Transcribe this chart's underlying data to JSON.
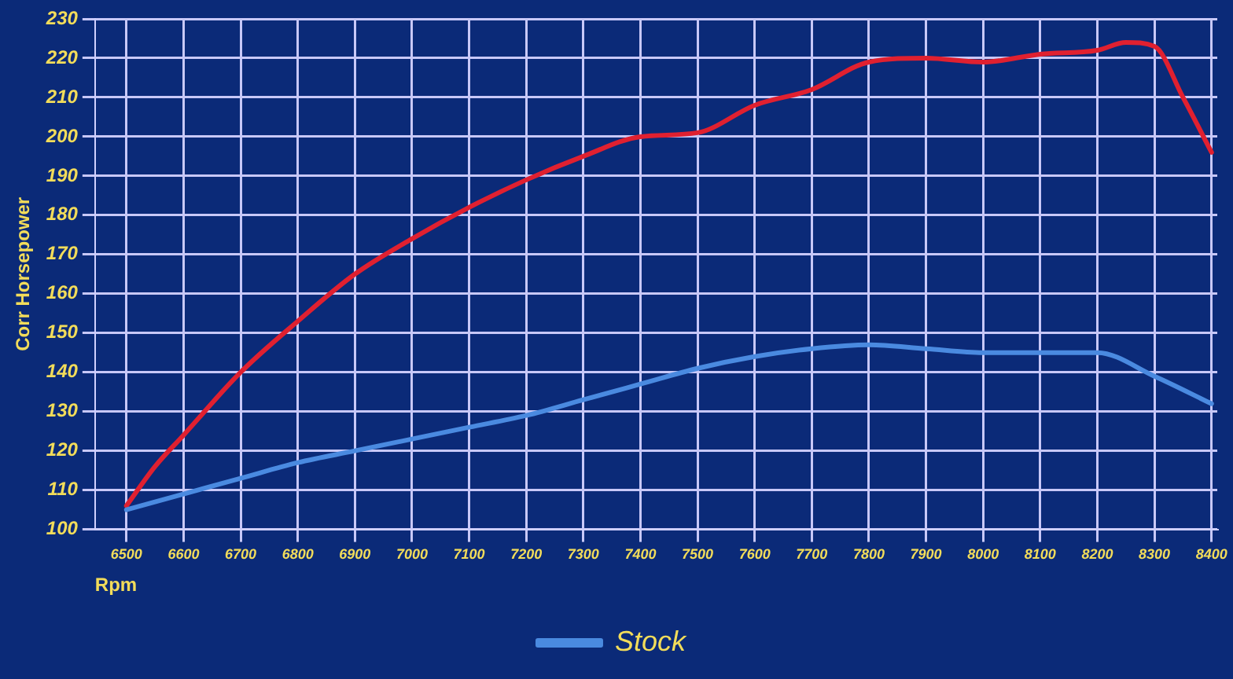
{
  "chart_data": {
    "type": "line",
    "xlabel": "Rpm",
    "ylabel": "Corr Horsepower",
    "xlim": [
      6445,
      8410
    ],
    "xticks": [
      6500,
      6600,
      6700,
      6800,
      6900,
      7000,
      7100,
      7200,
      7300,
      7400,
      7500,
      7600,
      7700,
      7800,
      7900,
      8000,
      8100,
      8200,
      8300,
      8400
    ],
    "ylim": [
      100,
      230
    ],
    "yticks": [
      100,
      110,
      120,
      130,
      140,
      150,
      160,
      170,
      180,
      190,
      200,
      210,
      220,
      230
    ],
    "grid": true,
    "legend": "bottom",
    "marker": "none",
    "line_style": "solid",
    "series": [
      {
        "name": "Stock",
        "color": "#4a8ae0",
        "x": [
          6500,
          6600,
          6700,
          6800,
          6900,
          7000,
          7100,
          7200,
          7300,
          7400,
          7500,
          7600,
          7700,
          7800,
          7900,
          8000,
          8100,
          8200,
          8300,
          8400
        ],
        "values": [
          105,
          109,
          113,
          117,
          120,
          123,
          126,
          129,
          133,
          137,
          141,
          144,
          146,
          147,
          146,
          145,
          145,
          145,
          139,
          132
        ]
      },
      {
        "color": "#e02030",
        "x": [
          6500,
          6550,
          6600,
          6700,
          6800,
          6900,
          7000,
          7100,
          7200,
          7300,
          7400,
          7500,
          7600,
          7700,
          7800,
          7900,
          8000,
          8100,
          8200,
          8250,
          8300,
          8350,
          8400
        ],
        "values": [
          106,
          116,
          124,
          140,
          153,
          165,
          174,
          182,
          189,
          195,
          200,
          201,
          208,
          212,
          219,
          220,
          219,
          221,
          222,
          224,
          223,
          210,
          196
        ]
      }
    ]
  }
}
